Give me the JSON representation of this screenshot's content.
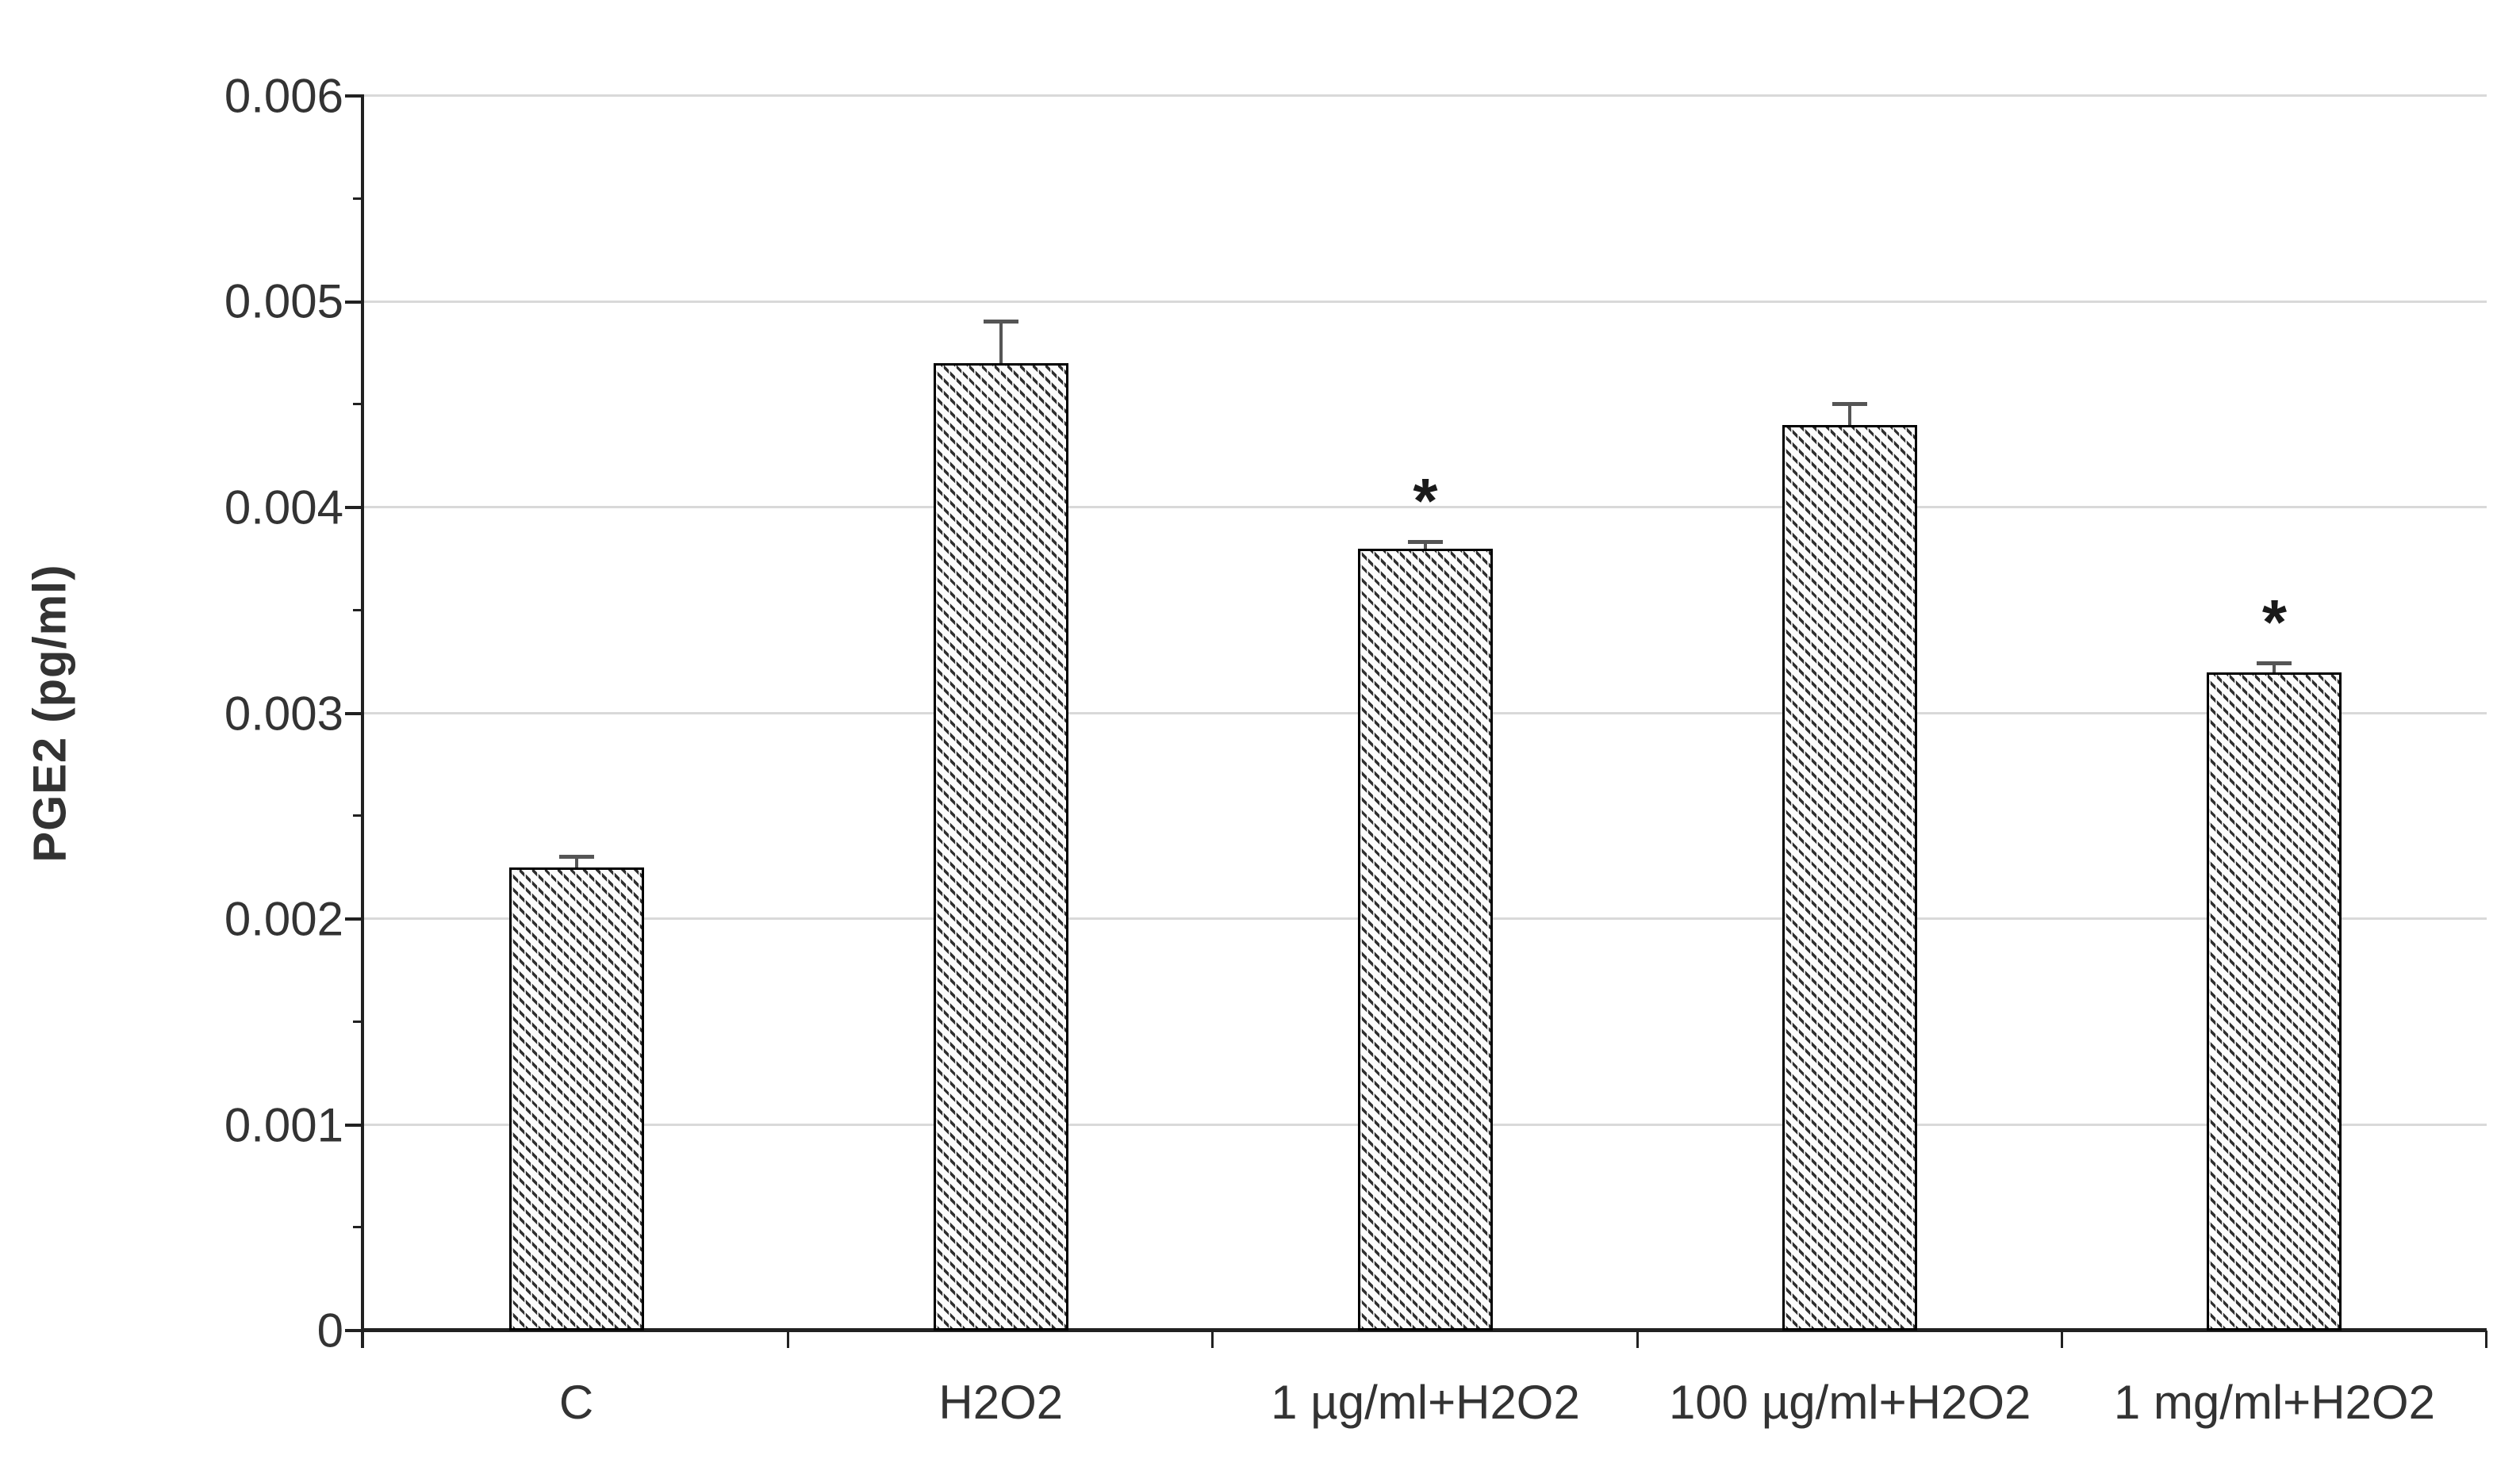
{
  "chart_data": {
    "type": "bar",
    "title": "",
    "ylabel": "PGE2 (pg/ml)",
    "xlabel": "",
    "categories": [
      "C",
      "H2O2",
      "1 µg/ml+H2O2",
      "100 µg/ml+H2O2",
      "1 mg/ml+H2O2"
    ],
    "values": [
      0.00225,
      0.0047,
      0.0038,
      0.0044,
      0.0032
    ],
    "error_bars_plus": [
      5e-05,
      0.0002,
      3e-05,
      0.0001,
      4e-05
    ],
    "significance_markers": [
      "",
      "",
      "*",
      "",
      "*"
    ],
    "ylim": [
      0,
      0.006
    ],
    "ytick_step": 0.001,
    "yminor_step": 0.0005,
    "ytick_labels": [
      "0",
      "0.001",
      "0.002",
      "0.003",
      "0.004",
      "0.005",
      "0.006"
    ],
    "grid": "horizontal-major",
    "legend": "none",
    "style": {
      "bar_fill": "#fcfcfc",
      "hatch": "diagonal-down-dashed",
      "hatch_color": "#2e2e2e",
      "bar_border_color": "#000000",
      "error_bar_color": "#555555",
      "gridline_color": "#d9d9d9",
      "axis_color": "#212121",
      "text_color": "#333333",
      "sig_color": "#1a1a1a"
    }
  }
}
